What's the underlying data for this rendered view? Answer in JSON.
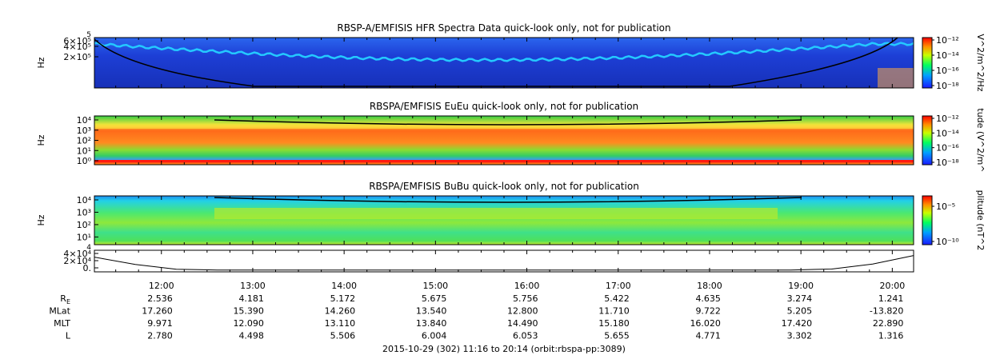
{
  "chart_data": [
    {
      "type": "heatmap",
      "title": "RBSP-A/EMFISIS  HFR Spectra Data quick-look only, not for publication",
      "ylabel": "Hz",
      "y_ticks": [
        "6×10⁵",
        "4×10⁵",
        "2×10⁵"
      ],
      "y_top_label": "5",
      "colorbar": {
        "label": "V^2/m^2/Hz",
        "ticks": [
          "10⁻¹²",
          "10⁻¹⁴",
          "10⁻¹⁶",
          "10⁻¹⁸"
        ]
      },
      "colors": {
        "background": "#1d3fd6",
        "band": "#24c9ff",
        "trace": "#000000"
      }
    },
    {
      "type": "heatmap",
      "title": "RBSPA/EMFISIS  EuEu quick-look only, not for publication",
      "ylabel": "Hz",
      "y_ticks": [
        "10⁴",
        "10³",
        "10²",
        "10¹",
        "10⁰"
      ],
      "colorbar": {
        "label": "tude (V^2/m^",
        "ticks": [
          "10⁻¹²",
          "10⁻¹⁴",
          "10⁻¹⁶",
          "10⁻¹⁸"
        ]
      },
      "colors": {
        "background": "#33cc44",
        "band": "#ff5a14",
        "trace": "#000000"
      }
    },
    {
      "type": "heatmap",
      "title": "RBSPA/EMFISIS  BuBu quick-look only, not for publication",
      "ylabel": "Hz",
      "y_ticks": [
        "10⁴",
        "10³",
        "10²",
        "10¹"
      ],
      "colorbar": {
        "label": "plitude (nT^2",
        "ticks": [
          "10⁻⁵",
          "10⁻¹⁰"
        ]
      },
      "colors": {
        "background": "#2ee5a0",
        "band": "#9be83a",
        "trace": "#000000"
      }
    },
    {
      "type": "line",
      "y_ticks": [
        "4×10⁴",
        "2×10⁴",
        "0."
      ],
      "y_top_label": "4",
      "ylim": [
        0,
        45000
      ]
    }
  ],
  "time_axis": {
    "labels": [
      "12:00",
      "13:00",
      "14:00",
      "15:00",
      "16:00",
      "17:00",
      "18:00",
      "19:00",
      "20:00"
    ],
    "range_label": "2015-10-29 (302) 11:16 to 20:14 (orbit:rbspa-pp:3089)"
  },
  "ephemeris": [
    {
      "name": "R",
      "subscript": "E",
      "values": [
        "2.536",
        "4.181",
        "5.172",
        "5.675",
        "5.756",
        "5.422",
        "4.635",
        "3.274",
        "1.241"
      ]
    },
    {
      "name": "MLat",
      "subscript": "",
      "values": [
        "17.260",
        "15.390",
        "14.260",
        "13.540",
        "12.800",
        "11.710",
        "9.722",
        "5.205",
        "-13.820"
      ]
    },
    {
      "name": "MLT",
      "subscript": "",
      "values": [
        "9.971",
        "12.090",
        "13.110",
        "13.840",
        "14.490",
        "15.180",
        "16.020",
        "17.420",
        "22.890"
      ]
    },
    {
      "name": "L",
      "subscript": "",
      "values": [
        "2.780",
        "4.498",
        "5.506",
        "6.004",
        "6.053",
        "5.655",
        "4.771",
        "3.302",
        "1.316"
      ]
    }
  ]
}
